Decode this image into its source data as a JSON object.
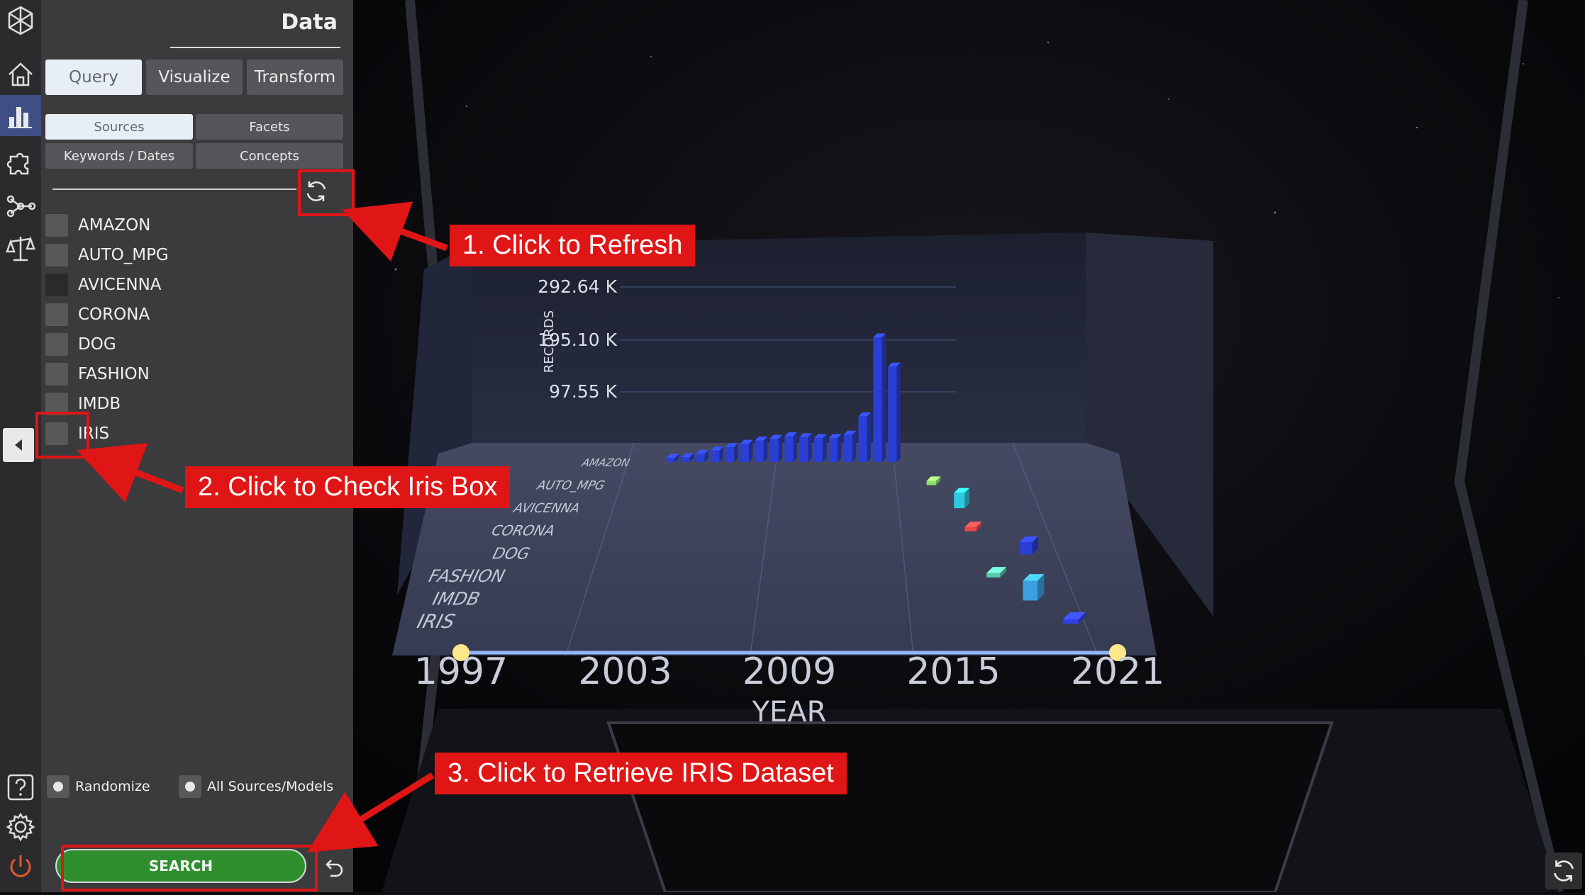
{
  "panel": {
    "title": "Data",
    "main_tabs": [
      {
        "label": "Query",
        "selected": true
      },
      {
        "label": "Visualize",
        "selected": false
      },
      {
        "label": "Transform",
        "selected": false
      }
    ],
    "sub_tabs": [
      {
        "label": "Sources",
        "selected": true
      },
      {
        "label": "Facets",
        "selected": false
      },
      {
        "label": "Keywords / Dates",
        "selected": false
      },
      {
        "label": "Concepts",
        "selected": false
      }
    ],
    "sources": [
      {
        "label": "AMAZON",
        "checked": false
      },
      {
        "label": "AUTO_MPG",
        "checked": false
      },
      {
        "label": "AVICENNA",
        "checked": false
      },
      {
        "label": "CORONA",
        "checked": false
      },
      {
        "label": "DOG",
        "checked": false
      },
      {
        "label": "FASHION",
        "checked": false
      },
      {
        "label": "IMDB",
        "checked": false
      },
      {
        "label": "IRIS",
        "checked": false
      }
    ],
    "options": {
      "randomize": "Randomize",
      "all_sources": "All Sources/Models"
    },
    "search_label": "SEARCH"
  },
  "rail_icons": [
    "logo-icon",
    "home-icon",
    "bar-chart-icon",
    "puzzle-icon",
    "graph-icon",
    "balance-scale-icon",
    "help-icon",
    "gear-icon",
    "power-icon"
  ],
  "chart_data": {
    "type": "bar",
    "xlabel": "YEAR",
    "ylabel": "RECORDS",
    "x_ticks": [
      "1997",
      "2003",
      "2009",
      "2015",
      "2021"
    ],
    "y_ticks": [
      "97.55 K",
      "195.10 K",
      "292.64 K"
    ],
    "rows": [
      "AMAZON",
      "AUTO_MPG",
      "AVICENNA",
      "CORONA",
      "DOG",
      "FASHION",
      "IMDB",
      "IRIS"
    ],
    "series": [
      {
        "name": "AMAZON",
        "color": "#2a3fd6",
        "x": [
          1999,
          2000,
          2001,
          2002,
          2003,
          2004,
          2005,
          2006,
          2007,
          2008,
          2009,
          2010,
          2011,
          2012,
          2013,
          2014
        ],
        "values": [
          5000,
          12000,
          20000,
          28000,
          36000,
          44000,
          52000,
          56000,
          62000,
          60000,
          58000,
          58000,
          66000,
          110000,
          300000,
          230000
        ]
      },
      {
        "name": "AUTO_MPG",
        "color": "#8fe06a",
        "x": [
          2016
        ],
        "values": [
          2000
        ]
      },
      {
        "name": "AVICENNA",
        "color": "#2ec8e0",
        "x": [
          2017
        ],
        "values": [
          30000
        ]
      },
      {
        "name": "CORONA",
        "color": "#e84848",
        "x": [
          2017
        ],
        "values": [
          5000
        ]
      },
      {
        "name": "DOG",
        "color": "#2a3fd6",
        "x": [
          2019
        ],
        "values": [
          20000
        ]
      },
      {
        "name": "FASHION",
        "color": "#5ac8a8",
        "x": [
          2017
        ],
        "values": [
          3000
        ]
      },
      {
        "name": "IMDB",
        "color": "#3aa0e0",
        "x": [
          2018
        ],
        "values": [
          28000
        ]
      },
      {
        "name": "IRIS",
        "color": "#3040e8",
        "x": [
          2019
        ],
        "values": [
          4000
        ]
      }
    ]
  },
  "annotations": [
    {
      "text": "1. Click to Refresh"
    },
    {
      "text": "2. Click to Check Iris Box"
    },
    {
      "text": "3. Click to Retrieve IRIS Dataset"
    }
  ],
  "colors": {
    "accent_red": "#e01515",
    "panel_bg": "#3b3b3e",
    "search_green": "#2f8f2f",
    "tab_selected": "#e7eef6"
  }
}
